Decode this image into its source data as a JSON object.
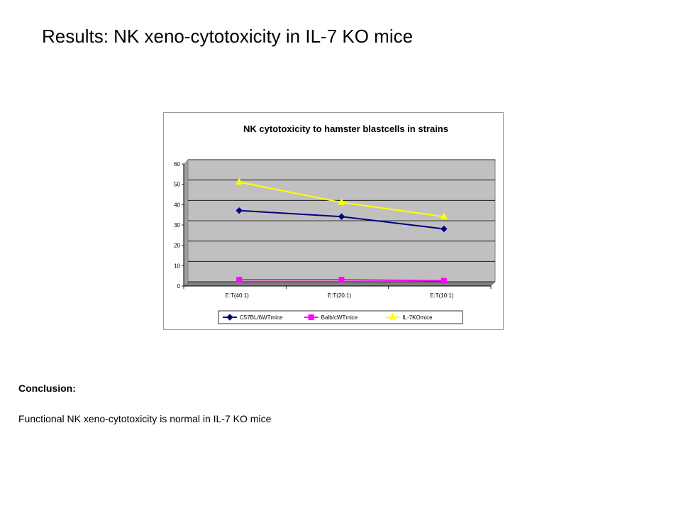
{
  "slide": {
    "title": "Results: NK xeno-cytotoxicity in IL-7 KO mice",
    "conclusion_heading": "Conclusion:",
    "conclusion_text": "Functional NK xeno-cytotoxicity is normal in IL-7 KO mice"
  },
  "chart_data": {
    "type": "line",
    "title": "NK cytotoxicity to hamster blastcells in strains",
    "xlabel": "",
    "ylabel": "",
    "categories": [
      "E:T(40:1)",
      "E:T(20:1)",
      "E:T(10:1)"
    ],
    "ylim": [
      0,
      60
    ],
    "yticks": [
      0,
      10,
      20,
      30,
      40,
      50,
      60
    ],
    "grid": true,
    "plot_background": "#c0c0c0",
    "legend_position": "bottom",
    "series": [
      {
        "name": "C57BL/6WTmice",
        "values": [
          35,
          32,
          26
        ],
        "color": "#000080",
        "marker": "diamond"
      },
      {
        "name": "Balb/cWTmice",
        "values": [
          1,
          1,
          0.5
        ],
        "color": "#ff00ff",
        "marker": "square"
      },
      {
        "name": "IL-7KOmice",
        "values": [
          49,
          39,
          32
        ],
        "color": "#ffff00",
        "marker": "triangle"
      }
    ]
  }
}
